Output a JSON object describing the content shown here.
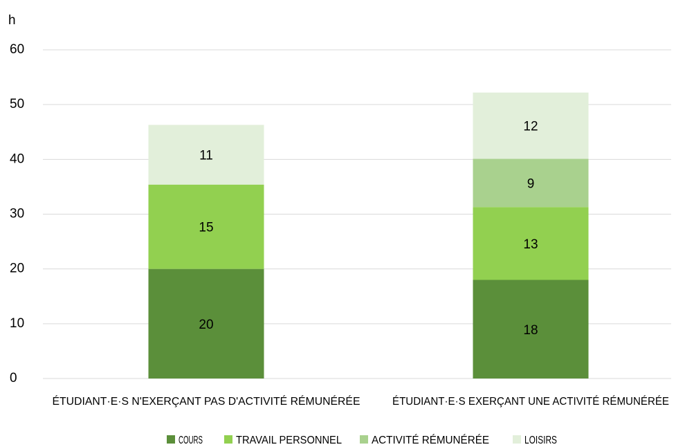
{
  "chart_data": {
    "type": "stacked_bar",
    "ylabel": "h",
    "categories": [
      "ÉTUDIANT·E·S N'EXERÇANT PAS D'ACTIVITÉ RÉMUNÉRÉE",
      "ÉTUDIANT·E·S EXERÇANT UNE ACTIVITÉ RÉMUNÉRÉE"
    ],
    "series": [
      {
        "name": "COURS",
        "color": "#5b8f3a",
        "values": [
          20,
          18
        ],
        "value_labels": [
          "20",
          "18"
        ]
      },
      {
        "name": "TRAVAIL PERSONNEL",
        "color": "#92d050",
        "values": [
          15.4,
          13.3
        ],
        "value_labels": [
          "15",
          "13"
        ]
      },
      {
        "name": "ACTIVITÉ RÉMUNÉRÉE",
        "color": "#a9d18e",
        "values": [
          null,
          8.8
        ],
        "value_labels": [
          null,
          "9"
        ]
      },
      {
        "name": "LOISIRS",
        "color": "#e2efda",
        "values": [
          10.9,
          12.1
        ],
        "value_labels": [
          "11",
          "12"
        ]
      }
    ],
    "ylim": [
      0,
      60
    ],
    "yticks": [
      0,
      10,
      20,
      30,
      40,
      50,
      60
    ],
    "grid": true,
    "legend": "bottom"
  }
}
